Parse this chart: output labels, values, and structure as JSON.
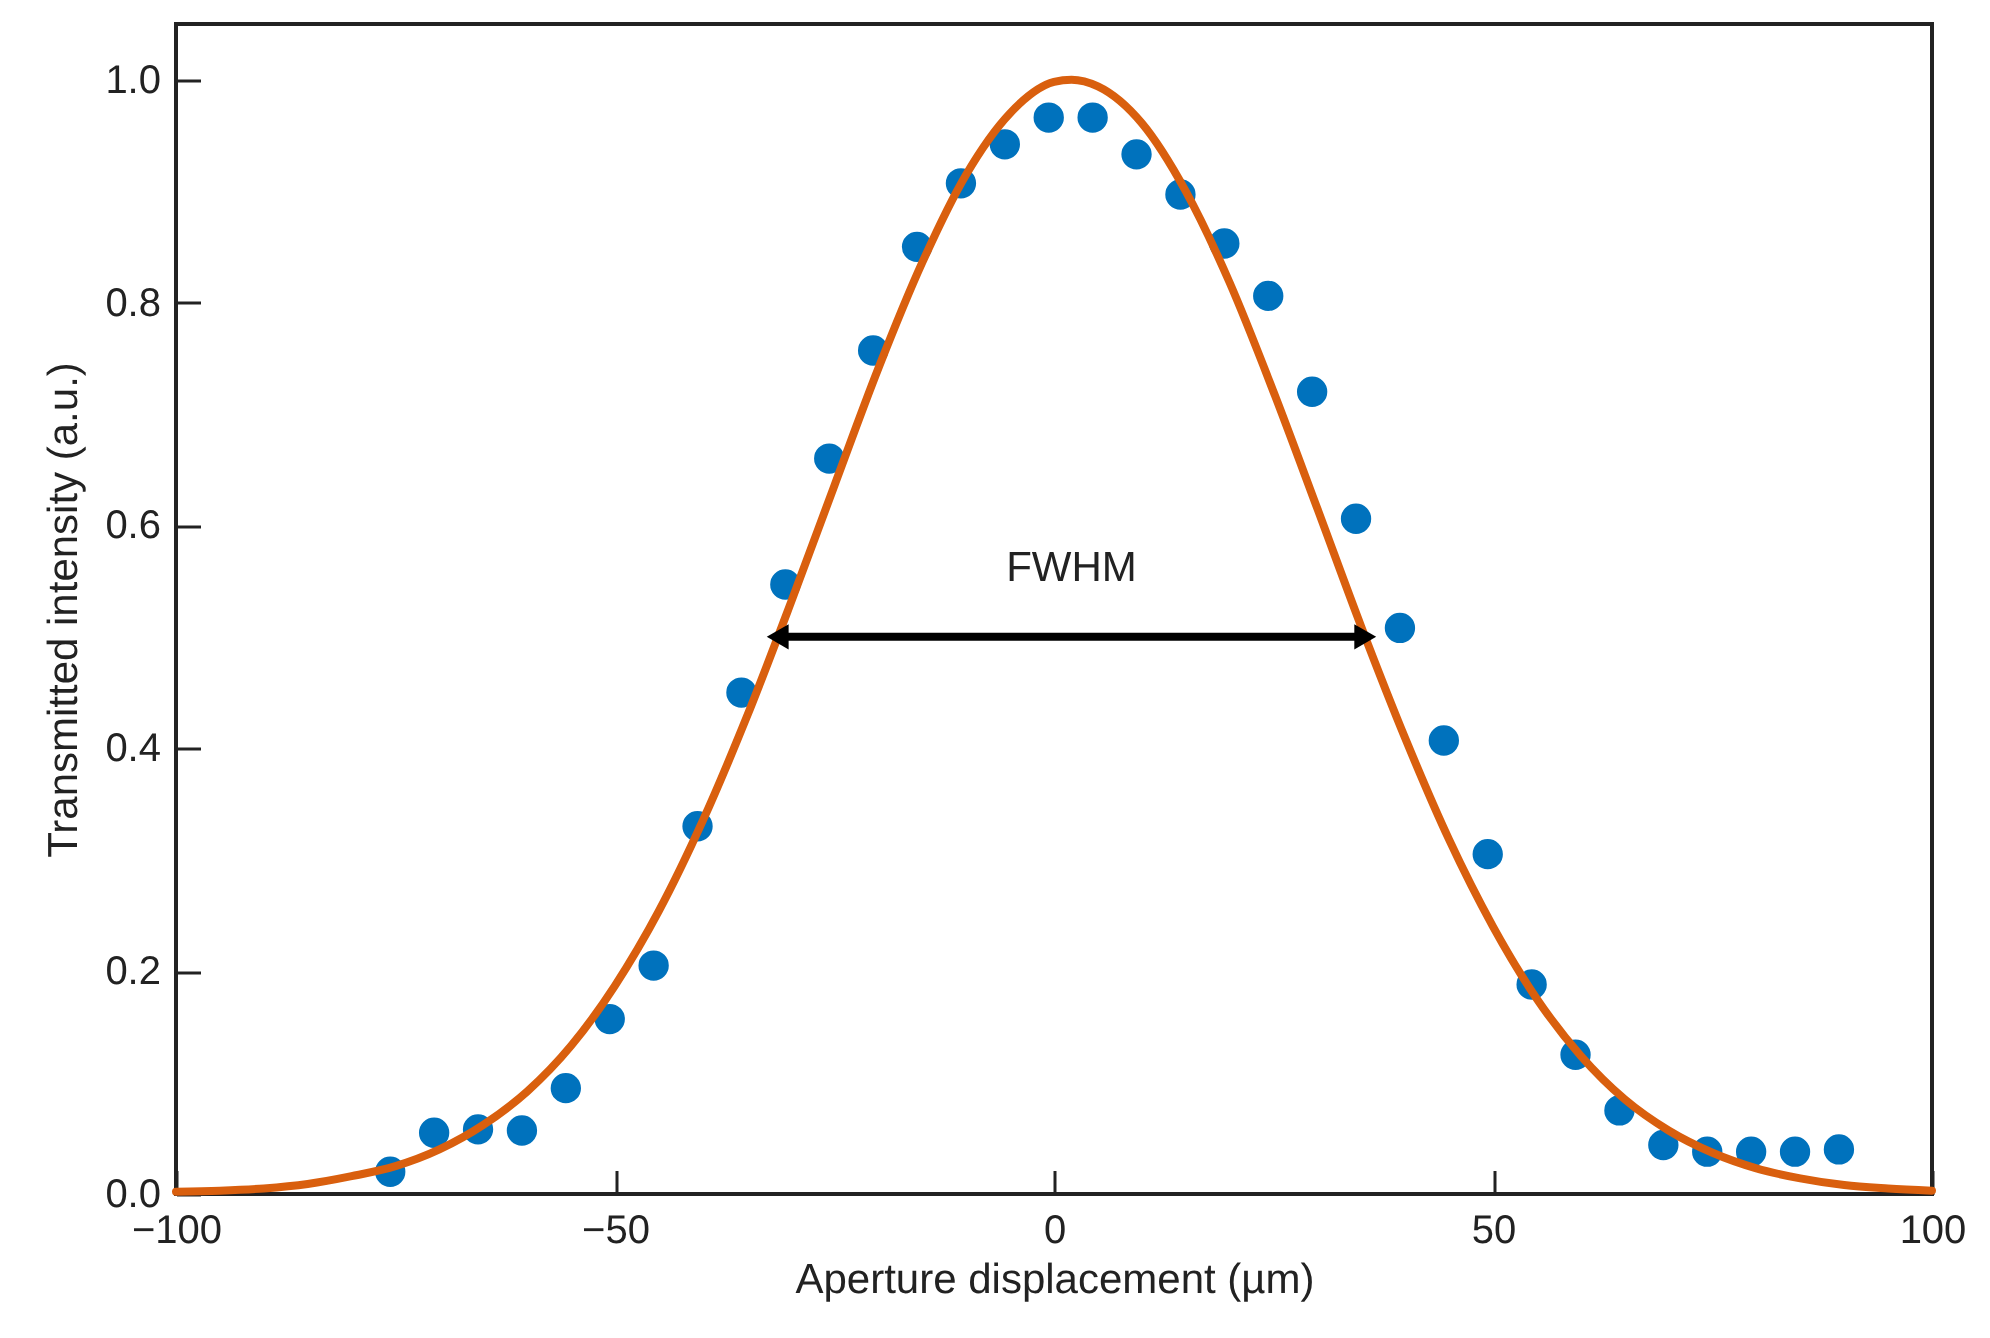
{
  "chart_data": {
    "type": "scatter",
    "xlabel": "Aperture displacement (µm)",
    "ylabel": "Transmitted intensity (a.u.)",
    "xlim": [
      -100,
      100
    ],
    "xticks": [
      {
        "value": -100,
        "label": "−100"
      },
      {
        "value": -50,
        "label": "−50"
      },
      0,
      50,
      100
    ],
    "ylim": [
      0,
      1.05
    ],
    "yticks": [
      {
        "value": 0,
        "label": "0.0"
      },
      0.2,
      0.4,
      0.6,
      0.8,
      {
        "value": 1,
        "label": "1.0"
      }
    ],
    "marker": "circle",
    "series": [
      {
        "type": "scatter",
        "color": "#0072bd",
        "x": [
          -75.6,
          -70.6,
          -65.6,
          -60.6,
          -55.6,
          -50.6,
          -45.6,
          -40.6,
          -35.6,
          -30.6,
          -25.6,
          -20.6,
          -15.6,
          -10.6,
          -5.6,
          -0.6,
          4.4,
          9.4,
          14.4,
          19.4,
          24.4,
          29.4,
          34.4,
          39.4,
          44.4,
          49.4,
          54.4,
          59.4,
          64.4,
          69.4,
          74.4,
          79.4,
          84.4,
          89.4
        ],
        "values": [
          0.02,
          0.055,
          0.058,
          0.057,
          0.095,
          0.157,
          0.205,
          0.33,
          0.45,
          0.547,
          0.66,
          0.757,
          0.85,
          0.907,
          0.942,
          0.966,
          0.966,
          0.933,
          0.897,
          0.853,
          0.806,
          0.72,
          0.606,
          0.508,
          0.407,
          0.305,
          0.188,
          0.125,
          0.075,
          0.044,
          0.038,
          0.038,
          0.038,
          0.04
        ]
      },
      {
        "type": "line",
        "color": "#d95f0e",
        "marker": "none",
        "line_style": "solid",
        "x": [
          -100,
          -95,
          -90,
          -85,
          -80,
          -75,
          -70,
          -65,
          -60,
          -55,
          -50,
          -45,
          -40,
          -35,
          -30,
          -25,
          -20,
          -15,
          -10,
          -5,
          0,
          2,
          5,
          10,
          15,
          20,
          25,
          30,
          35,
          40,
          45,
          50,
          55,
          60,
          65,
          70,
          75,
          80,
          85,
          90,
          95,
          100
        ],
        "values": [
          0.002,
          0.003,
          0.005,
          0.009,
          0.016,
          0.025,
          0.04,
          0.062,
          0.092,
          0.133,
          0.187,
          0.254,
          0.335,
          0.428,
          0.53,
          0.636,
          0.741,
          0.836,
          0.915,
          0.97,
          0.998,
          1.0,
          0.994,
          0.961,
          0.9,
          0.818,
          0.72,
          0.615,
          0.509,
          0.409,
          0.318,
          0.24,
          0.175,
          0.124,
          0.085,
          0.057,
          0.037,
          0.023,
          0.014,
          0.008,
          0.005,
          0.003
        ]
      }
    ],
    "annotations": [
      "FWHM"
    ]
  }
}
